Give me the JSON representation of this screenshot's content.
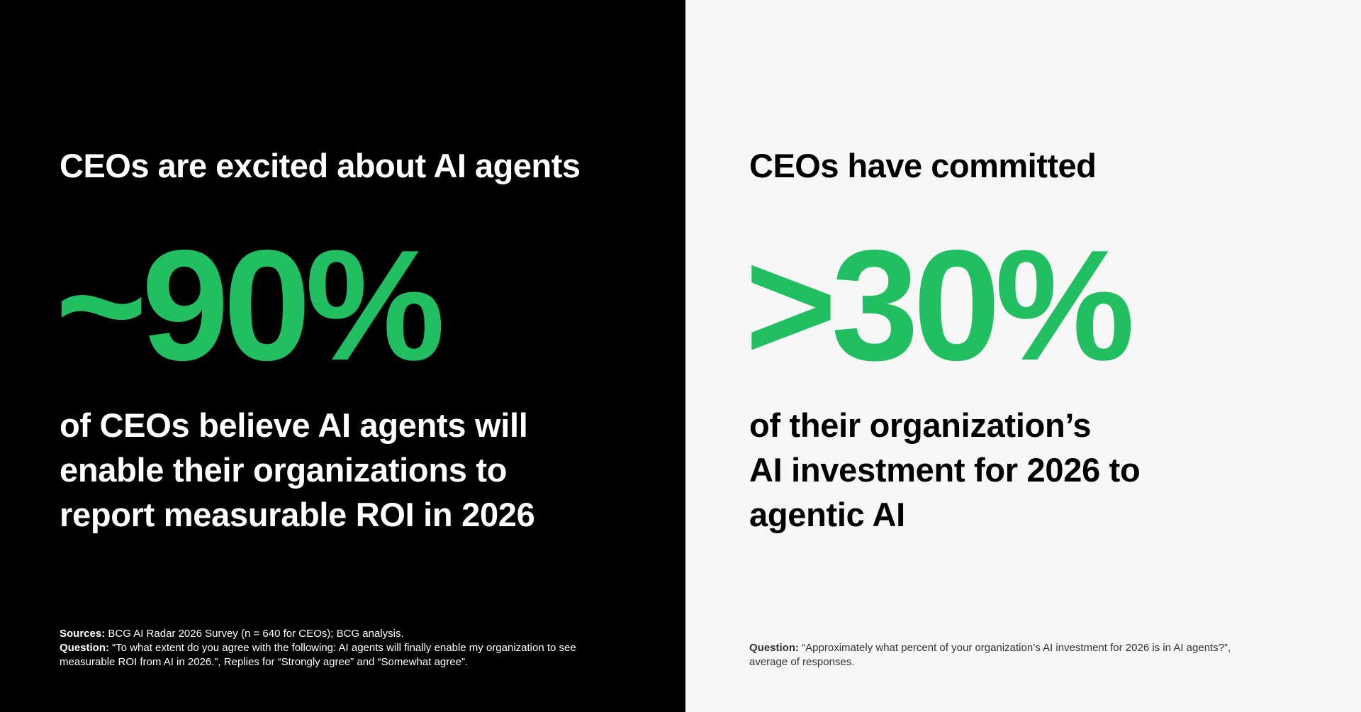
{
  "left": {
    "heading": "CEOs are excited about AI agents",
    "stat": "~90%",
    "body": [
      "of CEOs believe AI agents will",
      "enable their organizations to",
      "report measurable ROI in 2026"
    ],
    "footnote": {
      "sources_label": "Sources:",
      "sources_text": "BCG AI Radar 2026 Survey (n = 640 for CEOs); BCG analysis.",
      "question_label": "Question:",
      "question_lines": [
        "“To what extent do you agree with the following: AI agents will finally enable my organization to see",
        "measurable ROI from AI in 2026.”, Replies for “Strongly agree” and “Somewhat agree”."
      ]
    }
  },
  "right": {
    "heading": "CEOs have committed",
    "stat": ">30%",
    "body": [
      "of their organization’s",
      "AI investment for 2026 to",
      "agentic AI"
    ],
    "footnote": {
      "question_label": "Question:",
      "question_lines": [
        "“Approximately what percent of your organization’s AI investment for 2026 is in AI agents?”,",
        "average of responses."
      ]
    }
  }
}
